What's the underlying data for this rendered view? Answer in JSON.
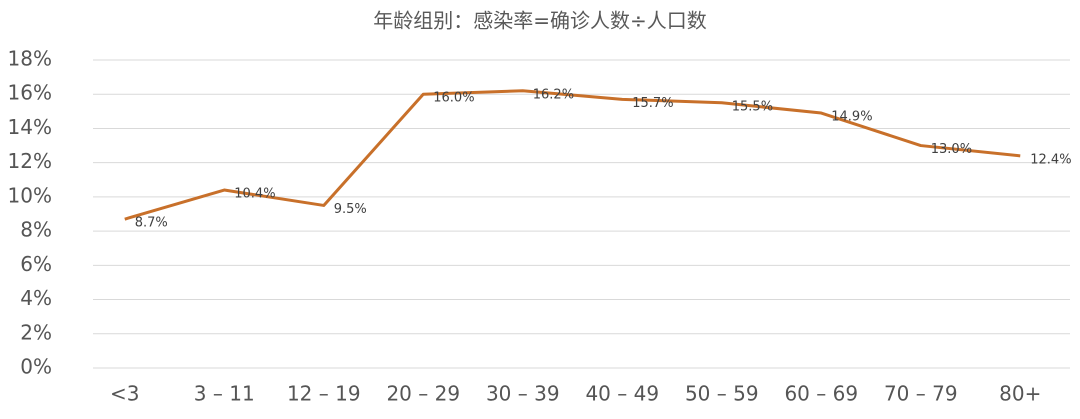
{
  "chart_data": {
    "type": "line",
    "title": "年龄组别：感染率=确诊人数÷人口数",
    "categories": [
      "<3",
      "3 – 11",
      "12 – 19",
      "20 – 29",
      "30 – 39",
      "40 – 49",
      "50 – 59",
      "60 – 69",
      "70 – 79",
      "80+"
    ],
    "values": [
      8.7,
      10.4,
      9.5,
      16.0,
      16.2,
      15.7,
      15.5,
      14.9,
      13.0,
      12.4
    ],
    "value_labels": [
      "8.7%",
      "10.4%",
      "9.5%",
      "16.0%",
      "16.2%",
      "15.7%",
      "15.5%",
      "14.9%",
      "13.0%",
      "12.4%"
    ],
    "color": "#c8702a",
    "ylim": [
      0,
      18
    ],
    "yticks": [
      {
        "value": 0,
        "label": "0%"
      },
      {
        "value": 2,
        "label": "2%"
      },
      {
        "value": 4,
        "label": "4%"
      },
      {
        "value": 6,
        "label": "6%"
      },
      {
        "value": 8,
        "label": "8%"
      },
      {
        "value": 10,
        "label": "10%"
      },
      {
        "value": 12,
        "label": "12%"
      },
      {
        "value": 14,
        "label": "14%"
      },
      {
        "value": 16,
        "label": "16%"
      },
      {
        "value": 18,
        "label": "18%"
      }
    ],
    "grid": true
  }
}
